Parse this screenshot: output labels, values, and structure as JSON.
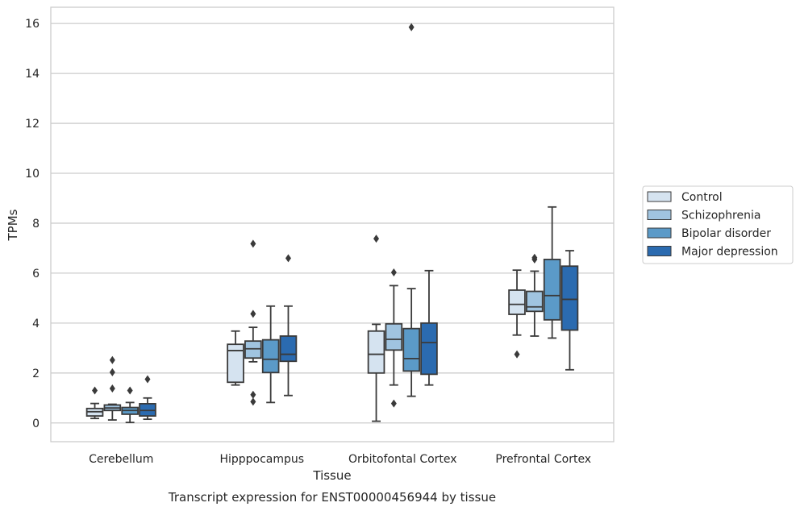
{
  "chart_data": {
    "type": "box",
    "title": "",
    "caption": "Transcript expression for ENST00000456944 by tissue",
    "xlabel": "Tissue",
    "ylabel": "TPMs",
    "ylim": [
      -0.75,
      16.65
    ],
    "yticks": [
      0,
      2,
      4,
      6,
      8,
      10,
      12,
      14,
      16
    ],
    "grid": true,
    "legend_position": "right",
    "categories": [
      "Cerebellum",
      "Hipppocampus",
      "Orbitofontal Cortex",
      "Prefrontal Cortex"
    ],
    "series": [
      {
        "name": "Control",
        "color": "#d5e3f0",
        "boxes": [
          {
            "whislo": 0.18,
            "q1": 0.28,
            "med": 0.45,
            "q3": 0.58,
            "whishi": 0.78,
            "fliers": [
              1.3
            ]
          },
          {
            "whislo": 1.52,
            "q1": 1.63,
            "med": 2.9,
            "q3": 3.15,
            "whishi": 3.68,
            "fliers": []
          },
          {
            "whislo": 0.07,
            "q1": 2.0,
            "med": 2.75,
            "q3": 3.68,
            "whishi": 3.95,
            "fliers": [
              7.38
            ]
          },
          {
            "whislo": 3.52,
            "q1": 4.35,
            "med": 4.75,
            "q3": 5.32,
            "whishi": 6.12,
            "fliers": [
              2.75
            ]
          }
        ]
      },
      {
        "name": "Schizophrenia",
        "color": "#a0c4e0",
        "boxes": [
          {
            "whislo": 0.12,
            "q1": 0.5,
            "med": 0.6,
            "q3": 0.72,
            "whishi": 0.75,
            "fliers": [
              1.38,
              2.03,
              2.52
            ]
          },
          {
            "whislo": 2.45,
            "q1": 2.6,
            "med": 2.97,
            "q3": 3.28,
            "whishi": 3.83,
            "fliers": [
              0.85,
              1.13,
              4.37,
              7.18
            ]
          },
          {
            "whislo": 1.52,
            "q1": 2.92,
            "med": 3.35,
            "q3": 3.97,
            "whishi": 5.5,
            "fliers": [
              0.78,
              6.03
            ]
          },
          {
            "whislo": 3.48,
            "q1": 4.47,
            "med": 4.65,
            "q3": 5.27,
            "whishi": 6.08,
            "fliers": [
              6.55,
              6.62
            ]
          }
        ]
      },
      {
        "name": "Bipolar disorder",
        "color": "#5b9ac8",
        "boxes": [
          {
            "whislo": 0.02,
            "q1": 0.35,
            "med": 0.5,
            "q3": 0.62,
            "whishi": 0.82,
            "fliers": [
              1.3
            ]
          },
          {
            "whislo": 0.82,
            "q1": 2.02,
            "med": 2.55,
            "q3": 3.33,
            "whishi": 4.68,
            "fliers": []
          },
          {
            "whislo": 1.07,
            "q1": 2.08,
            "med": 2.58,
            "q3": 3.78,
            "whishi": 5.38,
            "fliers": [
              15.85
            ]
          },
          {
            "whislo": 3.4,
            "q1": 4.13,
            "med": 5.1,
            "q3": 6.55,
            "whishi": 8.65,
            "fliers": []
          }
        ]
      },
      {
        "name": "Major depression",
        "color": "#2b6bb0",
        "boxes": [
          {
            "whislo": 0.15,
            "q1": 0.28,
            "med": 0.5,
            "q3": 0.77,
            "whishi": 1.0,
            "fliers": [
              1.75
            ]
          },
          {
            "whislo": 1.1,
            "q1": 2.47,
            "med": 2.75,
            "q3": 3.48,
            "whishi": 4.68,
            "fliers": [
              6.6
            ]
          },
          {
            "whislo": 1.52,
            "q1": 1.95,
            "med": 3.22,
            "q3": 4.0,
            "whishi": 6.1,
            "fliers": []
          },
          {
            "whislo": 2.13,
            "q1": 3.72,
            "med": 4.95,
            "q3": 6.28,
            "whishi": 6.9,
            "fliers": []
          }
        ]
      }
    ]
  }
}
